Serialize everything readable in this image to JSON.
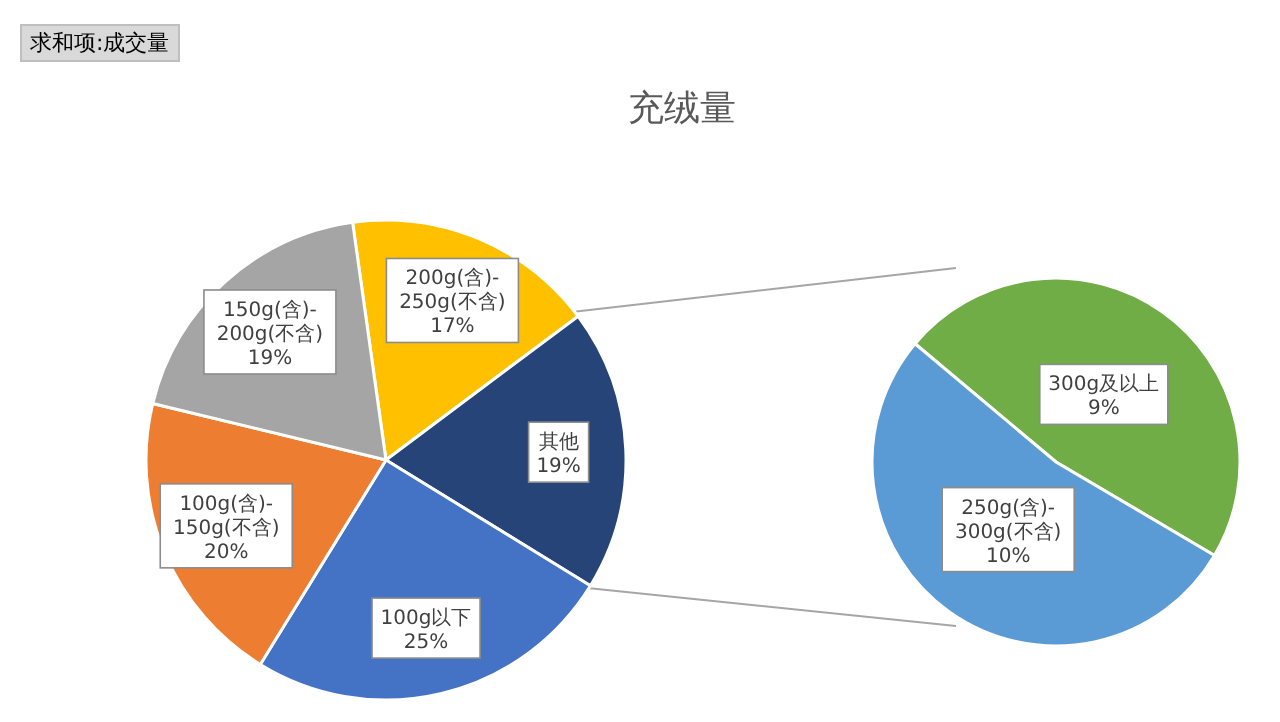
{
  "chart_data": [
    {
      "type": "pie",
      "title": "充绒量",
      "annotations": [
        "求和项:成交量"
      ],
      "categories": [
        "200g(含)-250g(不含)",
        "其他",
        "100g以下",
        "100g(含)-150g(不含)",
        "150g(含)-200g(不含)"
      ],
      "values": [
        17,
        19,
        25,
        20,
        19
      ],
      "value_labels": [
        "17%",
        "19%",
        "25%",
        "20%",
        "19%"
      ],
      "colors": [
        "#ffc000",
        "#264478",
        "#4472c4",
        "#ed7d31",
        "#a5a5a5"
      ],
      "legend": false
    },
    {
      "type": "pie",
      "categories": [
        "300g及以上",
        "250g(含)-300g(不含)"
      ],
      "values": [
        9,
        10
      ],
      "value_labels": [
        "9%",
        "10%"
      ],
      "colors": [
        "#70ad47",
        "#5b9bd5"
      ],
      "legend": false
    }
  ]
}
